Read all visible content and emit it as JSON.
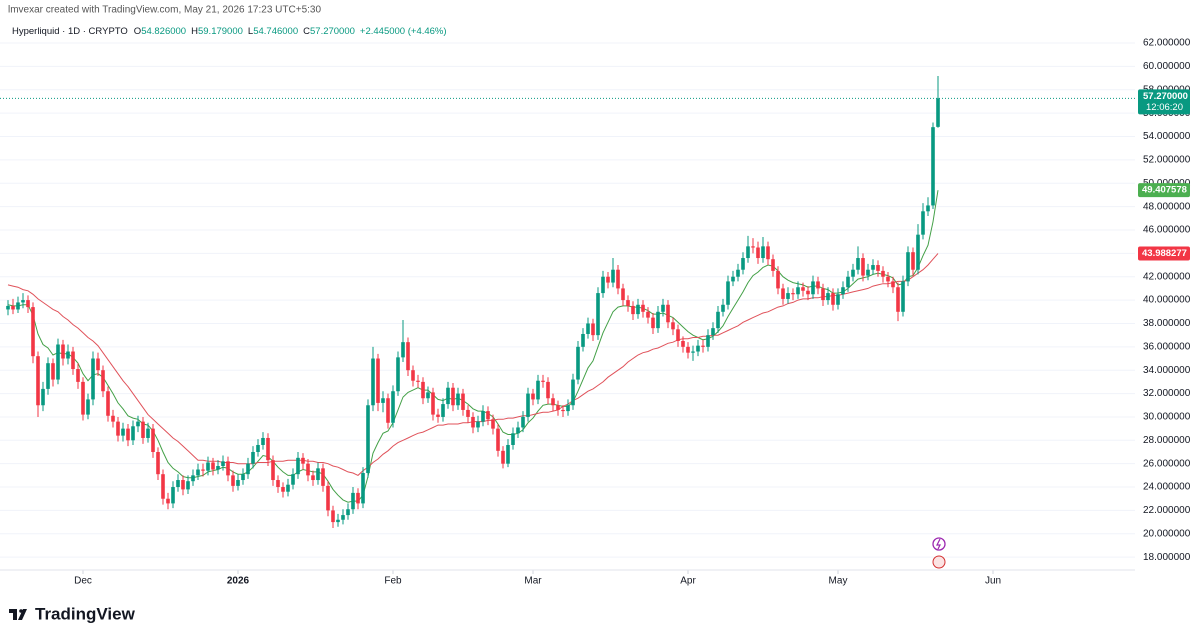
{
  "credit": "lmvexar created with TradingView.com, May 21, 2026 17:23 UTC+5:30",
  "brand": "TradingView",
  "chart_data": {
    "type": "candlestick",
    "ohlc_header": {
      "symbol": "Hyperliquid · 1D · CRYPTO",
      "fields": [
        {
          "key": "O",
          "text": "54.826000"
        },
        {
          "key": "H",
          "text": "59.179000"
        },
        {
          "key": "L",
          "text": "54.746000"
        },
        {
          "key": "C",
          "text": "57.270000"
        }
      ],
      "change": "+2.445000 (+4.46%)"
    },
    "countdown": "12:06:20",
    "up_color": "#089981",
    "down_color": "#f23645",
    "grid": true,
    "xlim": [
      -1.6,
      225.4
    ],
    "xticks": [
      {
        "value": 15,
        "label": "Dec"
      },
      {
        "value": 46,
        "label": "2026"
      },
      {
        "value": 77,
        "label": "Feb"
      },
      {
        "value": 105,
        "label": "Mar"
      },
      {
        "value": 136,
        "label": "Apr"
      },
      {
        "value": 166,
        "label": "May"
      },
      {
        "value": 197,
        "label": "Jun"
      }
    ],
    "ylim": [
      16.9,
      65.0
    ],
    "yticks": [
      {
        "value": 18,
        "label": "18.000000"
      },
      {
        "value": 20,
        "label": "20.000000"
      },
      {
        "value": 22,
        "label": "22.000000"
      },
      {
        "value": 24,
        "label": "24.000000"
      },
      {
        "value": 26,
        "label": "26.000000"
      },
      {
        "value": 28,
        "label": "28.000000"
      },
      {
        "value": 30,
        "label": "30.000000"
      },
      {
        "value": 32,
        "label": "32.000000"
      },
      {
        "value": 34,
        "label": "34.000000"
      },
      {
        "value": 36,
        "label": "36.000000"
      },
      {
        "value": 38,
        "label": "38.000000"
      },
      {
        "value": 40,
        "label": "40.000000"
      },
      {
        "value": 42,
        "label": "42.000000"
      },
      {
        "value": 44,
        "label": "44.000000"
      },
      {
        "value": 46,
        "label": "46.000000"
      },
      {
        "value": 48,
        "label": "48.000000"
      },
      {
        "value": 50,
        "label": "50.000000"
      },
      {
        "value": 52,
        "label": "52.000000"
      },
      {
        "value": 54,
        "label": "54.000000"
      },
      {
        "value": 56,
        "label": "56.000000"
      },
      {
        "value": 58,
        "label": "58.000000"
      },
      {
        "value": 60,
        "label": "60.000000"
      },
      {
        "value": 62,
        "label": "62.000000"
      }
    ],
    "open": [
      39.2,
      39.5,
      39.2,
      39.8,
      40.0,
      39.4,
      35.2,
      31.0,
      32.4,
      34.6,
      33.2,
      36.2,
      35.0,
      35.6,
      34.1,
      33.0,
      30.2,
      31.5,
      35.0,
      34.0,
      32.2,
      30.1,
      29.6,
      28.4,
      29.0,
      28.0,
      29.2,
      29.6,
      28.2,
      29.0,
      27.0,
      25.1,
      23.0,
      22.6,
      24.0,
      24.6,
      23.8,
      24.5,
      25.0,
      25.5,
      25.4,
      26.1,
      25.5,
      25.8,
      26.2,
      25.0,
      24.1,
      24.6,
      25.1,
      26.0,
      27.0,
      27.6,
      28.2,
      26.3,
      24.6,
      24.0,
      23.6,
      24.2,
      25.1,
      26.5,
      26.0,
      25.0,
      24.6,
      25.6,
      24.1,
      22.0,
      21.0,
      21.2,
      21.6,
      22.1,
      23.5,
      22.6,
      25.2,
      31.0,
      35.0,
      31.2,
      31.6,
      29.5,
      32.2,
      35.1,
      36.4,
      34.0,
      33.1,
      33.0,
      31.6,
      32.1,
      30.2,
      30.0,
      31.1,
      32.5,
      31.0,
      32.0,
      30.6,
      30.0,
      29.1,
      29.6,
      30.5,
      29.8,
      29.0,
      27.1,
      26.0,
      27.6,
      28.6,
      29.1,
      30.0,
      32.0,
      31.5,
      33.1,
      33.0,
      31.6,
      31.0,
      30.6,
      30.5,
      31.0,
      33.2,
      36.0,
      37.1,
      38.0,
      37.0,
      40.6,
      42.0,
      41.5,
      42.6,
      41.0,
      40.0,
      39.5,
      38.8,
      39.6,
      39.0,
      38.5,
      37.6,
      39.0,
      39.6,
      38.1,
      37.5,
      36.5,
      36.0,
      35.5,
      35.6,
      36.1,
      36.0,
      37.0,
      37.6,
      39.0,
      39.6,
      41.6,
      42.0,
      42.6,
      43.6,
      44.6,
      44.5,
      43.6,
      44.6,
      43.5,
      42.5,
      41.0,
      40.1,
      40.6,
      40.5,
      41.1,
      40.8,
      40.5,
      41.6,
      41.0,
      40.0,
      40.6,
      39.6,
      40.5,
      41.1,
      42.0,
      42.6,
      43.6,
      42.1,
      42.6,
      43.0,
      42.5,
      42.0,
      41.6,
      41.1,
      39.0,
      41.6,
      44.1,
      42.6,
      45.6,
      47.6,
      48.1,
      54.826
    ],
    "high": [
      40.0,
      40.1,
      40.3,
      40.6,
      40.4,
      39.8,
      35.6,
      33.0,
      35.1,
      35.0,
      36.7,
      36.6,
      36.2,
      36.0,
      34.6,
      33.4,
      32.0,
      35.6,
      35.5,
      34.4,
      32.6,
      30.6,
      30.0,
      29.5,
      29.4,
      29.7,
      30.1,
      30.0,
      29.5,
      29.4,
      27.4,
      25.5,
      23.5,
      24.5,
      25.1,
      25.0,
      25.0,
      25.5,
      26.0,
      26.0,
      26.6,
      26.5,
      26.3,
      26.7,
      26.6,
      25.4,
      25.1,
      25.6,
      26.5,
      27.5,
      28.1,
      28.7,
      28.6,
      26.7,
      25.0,
      24.4,
      24.7,
      25.6,
      27.0,
      26.9,
      26.4,
      25.4,
      26.1,
      26.0,
      24.5,
      22.4,
      21.7,
      22.1,
      22.6,
      24.0,
      23.9,
      25.7,
      31.5,
      36.0,
      35.4,
      32.2,
      32.0,
      32.7,
      35.6,
      38.3,
      36.8,
      34.4,
      33.6,
      33.4,
      32.6,
      32.5,
      30.7,
      31.6,
      33.0,
      32.9,
      32.5,
      32.4,
      31.0,
      30.4,
      30.1,
      31.0,
      30.9,
      30.2,
      29.4,
      27.5,
      28.1,
      29.1,
      29.6,
      30.5,
      32.5,
      32.4,
      33.6,
      33.6,
      33.4,
      32.0,
      31.4,
      31.0,
      31.5,
      33.7,
      36.5,
      37.6,
      38.5,
      38.4,
      41.1,
      42.5,
      42.4,
      43.6,
      43.0,
      41.4,
      40.4,
      39.9,
      40.1,
      40.0,
      39.4,
      38.9,
      39.5,
      40.1,
      40.0,
      38.5,
      37.9,
      36.9,
      36.4,
      36.1,
      36.6,
      36.6,
      37.5,
      38.1,
      39.5,
      40.1,
      42.1,
      42.5,
      43.1,
      44.1,
      45.5,
      45.3,
      45.0,
      45.4,
      45.0,
      43.9,
      42.9,
      41.4,
      41.1,
      41.0,
      41.6,
      41.5,
      41.2,
      42.1,
      42.0,
      41.4,
      41.1,
      41.0,
      41.0,
      41.6,
      42.5,
      43.1,
      44.6,
      44.0,
      43.1,
      43.5,
      43.4,
      42.9,
      42.4,
      42.0,
      41.5,
      42.1,
      44.6,
      44.5,
      46.5,
      48.3,
      48.8,
      55.2,
      59.179
    ],
    "low": [
      38.7,
      38.8,
      38.9,
      39.3,
      38.9,
      34.6,
      30.0,
      30.5,
      31.9,
      32.6,
      32.8,
      34.4,
      34.5,
      33.6,
      32.4,
      29.7,
      29.8,
      31.0,
      33.5,
      31.7,
      29.6,
      29.1,
      27.9,
      27.9,
      27.5,
      27.6,
      28.7,
      27.7,
      27.8,
      26.5,
      24.6,
      22.5,
      22.1,
      22.2,
      23.6,
      23.3,
      23.4,
      24.1,
      24.6,
      24.9,
      25.0,
      25.0,
      25.1,
      25.4,
      24.5,
      23.6,
      23.7,
      24.2,
      24.7,
      25.6,
      26.6,
      27.2,
      25.8,
      24.1,
      23.5,
      23.1,
      23.2,
      23.8,
      24.7,
      25.5,
      24.5,
      24.1,
      24.2,
      23.6,
      21.5,
      20.5,
      20.6,
      20.8,
      21.2,
      21.7,
      22.1,
      22.2,
      24.8,
      30.5,
      30.5,
      30.4,
      29.0,
      29.1,
      31.8,
      34.7,
      33.5,
      32.6,
      32.5,
      31.1,
      31.2,
      29.7,
      29.5,
      29.6,
      30.7,
      30.5,
      30.6,
      30.1,
      29.5,
      28.6,
      28.7,
      29.2,
      29.3,
      28.5,
      26.6,
      25.6,
      25.7,
      27.2,
      28.2,
      28.7,
      29.6,
      31.0,
      31.1,
      32.5,
      31.1,
      30.5,
      30.1,
      30.0,
      30.1,
      30.6,
      32.8,
      35.6,
      36.7,
      36.5,
      36.6,
      40.2,
      41.0,
      41.1,
      40.5,
      39.5,
      39.0,
      38.3,
      38.4,
      38.5,
      38.0,
      37.1,
      37.2,
      38.6,
      37.6,
      37.0,
      36.0,
      35.5,
      35.0,
      34.8,
      35.2,
      35.5,
      35.6,
      36.6,
      37.2,
      38.6,
      39.2,
      41.2,
      41.6,
      42.2,
      43.2,
      44.0,
      43.1,
      43.2,
      43.0,
      42.0,
      40.5,
      39.6,
      39.7,
      40.0,
      40.1,
      40.3,
      40.0,
      40.1,
      40.5,
      39.5,
      39.6,
      39.1,
      39.2,
      40.1,
      40.7,
      41.6,
      42.2,
      41.6,
      41.7,
      42.2,
      42.0,
      41.5,
      41.1,
      40.6,
      38.2,
      38.6,
      41.2,
      42.1,
      42.2,
      45.2,
      47.2,
      47.8,
      54.746
    ],
    "close": [
      39.5,
      39.2,
      39.8,
      40.0,
      39.4,
      35.2,
      31.0,
      32.4,
      34.6,
      33.2,
      36.2,
      35.0,
      35.6,
      34.1,
      33.0,
      30.2,
      31.5,
      35.0,
      34.0,
      32.2,
      30.1,
      29.6,
      28.4,
      29.0,
      28.0,
      29.2,
      29.6,
      28.2,
      29.0,
      27.0,
      25.1,
      23.0,
      22.6,
      24.0,
      24.6,
      23.8,
      24.5,
      25.0,
      25.5,
      25.4,
      26.1,
      25.5,
      25.8,
      26.2,
      25.0,
      24.1,
      24.6,
      25.1,
      26.0,
      27.0,
      27.6,
      28.2,
      26.3,
      24.6,
      24.0,
      23.6,
      24.2,
      25.1,
      26.5,
      26.0,
      25.0,
      24.6,
      25.6,
      24.1,
      22.0,
      21.0,
      21.2,
      21.6,
      22.1,
      23.5,
      22.6,
      25.2,
      31.0,
      35.0,
      31.2,
      31.6,
      29.5,
      32.2,
      35.1,
      36.4,
      34.0,
      33.1,
      33.0,
      31.6,
      32.1,
      30.2,
      30.0,
      31.1,
      32.5,
      31.0,
      32.0,
      30.6,
      30.0,
      29.1,
      29.6,
      30.5,
      29.8,
      29.0,
      27.1,
      26.0,
      27.6,
      28.6,
      29.1,
      30.0,
      32.0,
      31.5,
      33.1,
      33.0,
      31.6,
      31.0,
      30.6,
      30.5,
      31.0,
      33.2,
      36.0,
      37.1,
      38.0,
      37.0,
      40.6,
      42.0,
      41.5,
      42.6,
      41.0,
      40.0,
      39.5,
      38.8,
      39.6,
      39.0,
      38.5,
      37.6,
      39.0,
      39.6,
      38.1,
      37.5,
      36.5,
      36.0,
      35.5,
      35.6,
      36.1,
      36.0,
      37.0,
      37.6,
      39.0,
      39.6,
      41.6,
      42.0,
      42.6,
      43.6,
      44.6,
      44.5,
      43.6,
      44.6,
      43.5,
      42.5,
      41.0,
      40.1,
      40.6,
      40.5,
      41.1,
      40.8,
      40.5,
      41.6,
      41.0,
      40.0,
      40.6,
      39.6,
      40.5,
      41.1,
      42.0,
      42.6,
      43.6,
      42.1,
      42.6,
      43.0,
      42.5,
      42.0,
      41.6,
      41.1,
      39.0,
      41.6,
      44.1,
      42.6,
      45.6,
      47.6,
      48.1,
      54.8,
      57.27
    ],
    "lines": [
      {
        "color": "#43a047",
        "label_color": "#4caf50",
        "values": [
          39.6,
          39.5,
          39.5,
          39.6,
          39.6,
          38.7,
          37.1,
          36.2,
          35.9,
          35.3,
          35.5,
          35.4,
          35.4,
          35.1,
          34.6,
          33.7,
          33.1,
          33.6,
          33.7,
          33.4,
          32.7,
          32.0,
          31.2,
          30.7,
          30.1,
          29.9,
          29.8,
          29.4,
          29.3,
          28.8,
          28.0,
          27.0,
          26.1,
          25.6,
          25.3,
          24.9,
          24.8,
          24.8,
          24.9,
          25.0,
          25.3,
          25.4,
          25.5,
          25.7,
          25.6,
          25.3,
          25.1,
          25.1,
          25.3,
          25.7,
          26.2,
          26.7,
          26.6,
          26.2,
          25.7,
          25.3,
          25.0,
          25.0,
          25.3,
          25.5,
          25.4,
          25.3,
          25.3,
          25.1,
          24.5,
          23.8,
          23.3,
          22.9,
          22.7,
          22.8,
          22.8,
          23.3,
          24.9,
          26.9,
          27.8,
          28.6,
          28.8,
          29.5,
          30.6,
          31.7,
          32.1,
          32.3,
          32.5,
          32.3,
          32.3,
          31.9,
          31.5,
          31.4,
          31.6,
          31.5,
          31.6,
          31.4,
          31.1,
          30.7,
          30.5,
          30.5,
          30.3,
          30.0,
          29.4,
          28.7,
          28.5,
          28.5,
          28.6,
          28.9,
          29.5,
          29.9,
          30.5,
          31.0,
          31.1,
          31.1,
          31.0,
          30.9,
          30.9,
          31.3,
          32.2,
          33.2,
          34.2,
          34.8,
          36.0,
          37.2,
          38.1,
          39.0,
          39.4,
          39.5,
          39.5,
          39.4,
          39.4,
          39.3,
          39.1,
          38.8,
          38.8,
          38.9,
          38.7,
          38.5,
          38.1,
          37.7,
          37.3,
          37.0,
          36.8,
          36.6,
          36.7,
          36.9,
          37.3,
          37.8,
          38.6,
          39.3,
          40.0,
          40.7,
          41.5,
          42.1,
          42.4,
          42.8,
          43.0,
          42.9,
          42.5,
          42.0,
          41.7,
          41.5,
          41.4,
          41.3,
          41.1,
          41.2,
          41.2,
          41.0,
          40.9,
          40.6,
          40.6,
          40.7,
          41.0,
          41.4,
          41.8,
          41.9,
          42.0,
          42.2,
          42.3,
          42.2,
          42.1,
          41.9,
          41.3,
          41.4,
          42.0,
          42.1,
          42.8,
          43.8,
          44.7,
          46.7,
          49.407578
        ]
      },
      {
        "color": "#e0525a",
        "label_color": "#f23645",
        "values": [
          41.3,
          41.2,
          41.1,
          40.9,
          40.8,
          40.5,
          40.1,
          39.8,
          39.5,
          39.2,
          39.0,
          38.6,
          38.3,
          37.9,
          37.6,
          37.2,
          36.8,
          36.5,
          36.1,
          35.5,
          34.9,
          34.3,
          33.7,
          33.1,
          32.6,
          32.0,
          31.4,
          30.8,
          30.2,
          29.8,
          29.4,
          29.0,
          28.6,
          28.2,
          27.9,
          27.5,
          27.1,
          26.7,
          26.3,
          26.3,
          26.2,
          26.2,
          26.2,
          26.1,
          26.1,
          26.1,
          26.0,
          26.0,
          26.0,
          26.0,
          26.1,
          26.1,
          26.1,
          26.2,
          26.2,
          26.2,
          26.3,
          26.3,
          26.3,
          26.3,
          26.2,
          26.2,
          26.1,
          26.1,
          26.0,
          25.8,
          25.7,
          25.5,
          25.3,
          25.2,
          25.0,
          25.4,
          25.7,
          26.1,
          26.4,
          26.8,
          27.1,
          27.5,
          27.8,
          28.0,
          28.2,
          28.4,
          28.6,
          28.7,
          28.9,
          29.1,
          29.3,
          29.3,
          29.4,
          29.4,
          29.4,
          29.5,
          29.5,
          29.6,
          29.6,
          29.6,
          29.7,
          29.7,
          29.8,
          29.8,
          29.9,
          29.9,
          30.0,
          30.1,
          30.1,
          30.2,
          30.3,
          30.4,
          30.4,
          30.5,
          30.6,
          30.9,
          31.1,
          31.4,
          31.6,
          31.9,
          32.2,
          32.4,
          32.7,
          33.0,
          33.4,
          33.7,
          34.0,
          34.3,
          34.7,
          35.0,
          35.3,
          35.5,
          35.6,
          35.8,
          35.9,
          36.1,
          36.3,
          36.4,
          36.6,
          36.7,
          36.7,
          36.8,
          36.8,
          36.9,
          36.9,
          37.0,
          37.0,
          37.2,
          37.4,
          37.6,
          37.8,
          38.1,
          38.3,
          38.5,
          38.7,
          38.9,
          39.0,
          39.2,
          39.4,
          39.5,
          39.7,
          39.8,
          40.0,
          40.1,
          40.1,
          40.2,
          40.2,
          40.3,
          40.3,
          40.4,
          40.4,
          40.5,
          40.6,
          40.7,
          40.8,
          40.9,
          41.0,
          41.2,
          41.3,
          41.4,
          41.4,
          41.5,
          41.6,
          41.6,
          41.7,
          42.0,
          42.3,
          42.6,
          43.0,
          43.5,
          43.988277
        ]
      }
    ]
  }
}
